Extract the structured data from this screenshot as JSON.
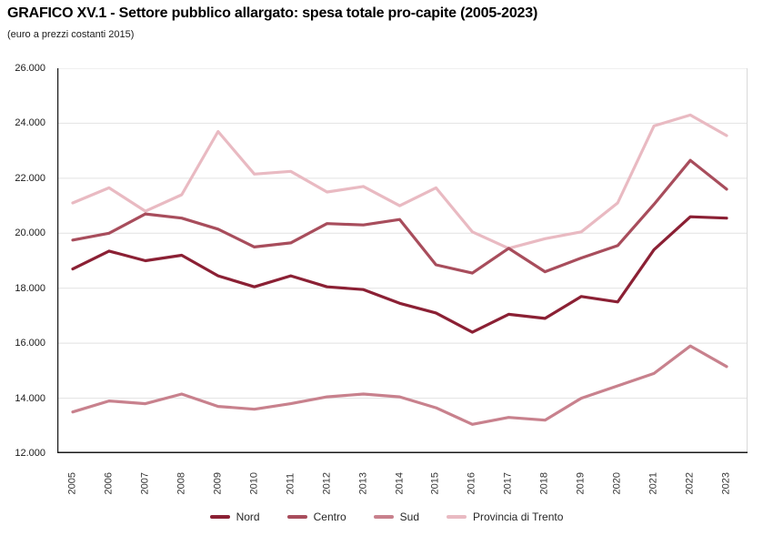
{
  "header": {
    "title": "GRAFICO XV.1 - Settore pubblico allargato: spesa totale pro-capite (2005-2023)",
    "subtitle": "(euro a prezzi costanti 2015)"
  },
  "chart_data": {
    "type": "line",
    "title": "GRAFICO XV.1 - Settore pubblico allargato: spesa totale pro-capite (2005-2023)",
    "subtitle": "(euro a prezzi costanti 2015)",
    "x": [
      2005,
      2006,
      2007,
      2008,
      2009,
      2010,
      2011,
      2012,
      2013,
      2014,
      2015,
      2016,
      2017,
      2018,
      2019,
      2020,
      2021,
      2022,
      2023
    ],
    "series": [
      {
        "name": "Nord",
        "color": "#8b2034",
        "values": [
          18700,
          19350,
          19000,
          19200,
          18450,
          18050,
          18450,
          18050,
          17950,
          17450,
          17100,
          16400,
          17050,
          16900,
          17700,
          17500,
          19400,
          20600,
          20550
        ]
      },
      {
        "name": "Centro",
        "color": "#a84d5c",
        "values": [
          19750,
          20000,
          20700,
          20550,
          20150,
          19500,
          19650,
          20350,
          20300,
          20500,
          18850,
          18550,
          19450,
          18600,
          19100,
          19550,
          21050,
          22650,
          21600
        ]
      },
      {
        "name": "Sud",
        "color": "#c8818d",
        "values": [
          13500,
          13900,
          13800,
          14150,
          13700,
          13600,
          13800,
          14050,
          14150,
          14050,
          13650,
          13050,
          13300,
          13200,
          14000,
          14450,
          14900,
          15900,
          15150
        ]
      },
      {
        "name": "Provincia di Trento",
        "color": "#e9bac2",
        "values": [
          21100,
          21650,
          20800,
          21400,
          23700,
          22150,
          22250,
          21500,
          21700,
          21000,
          21650,
          20050,
          19450,
          19800,
          20050,
          21100,
          23900,
          24300,
          23550
        ]
      }
    ],
    "ylim": [
      12000,
      26000
    ],
    "y_tick_step": 2000,
    "y_tick_labels": [
      "26.000",
      "24.000",
      "22.000",
      "20.000",
      "18.000",
      "16.000",
      "14.000",
      "12.000"
    ],
    "xlabel": "",
    "ylabel": "",
    "grid": "horizontal",
    "legend_position": "bottom",
    "colors": {
      "grid": "#e2e2e2",
      "spine_dark": "#1a1a1a",
      "spine_light": "#d9d9d9"
    }
  }
}
